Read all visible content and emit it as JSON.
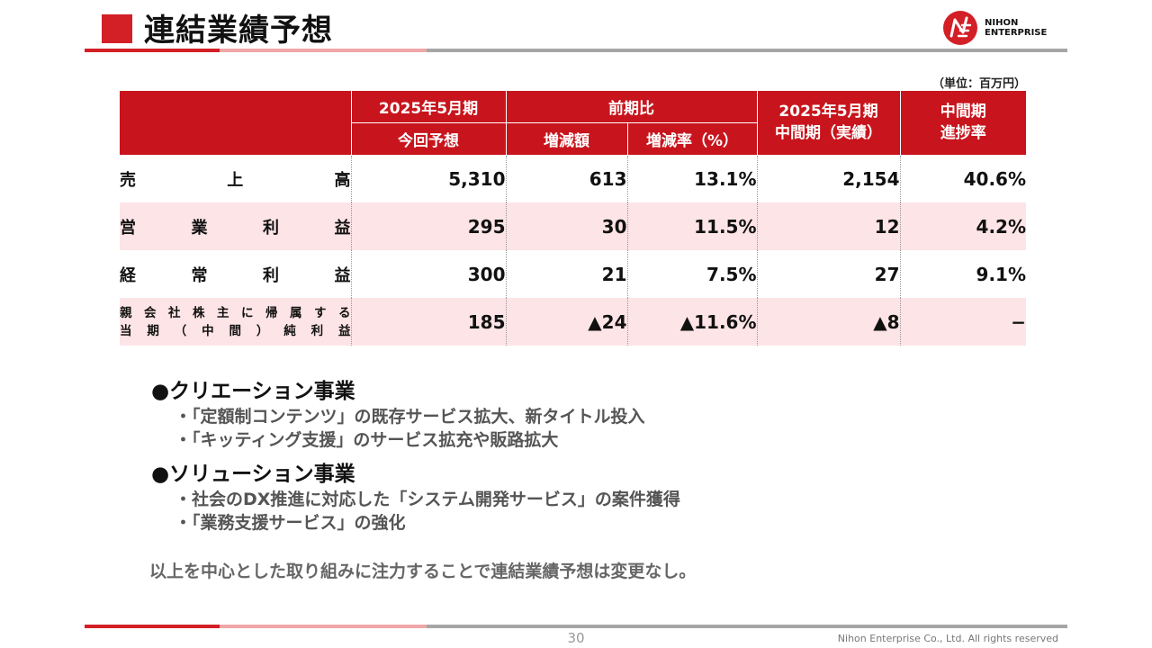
{
  "title": "連結業績予想",
  "logo": {
    "line1": "NIHON",
    "line2": "ENTERPRISE",
    "mark": "NE"
  },
  "unit": "（単位：百万円）",
  "table": {
    "header": {
      "col_fy": "2025年5月期",
      "col_fy_sub": "今回予想",
      "col_yoy": "前期比",
      "col_yoy_amount": "増減額",
      "col_yoy_rate": "増減率（%）",
      "col_interim_line1": "2025年5月期",
      "col_interim_line2": "中間期（実績）",
      "col_progress_line1": "中間期",
      "col_progress_line2": "進捗率"
    },
    "rows": [
      {
        "label_chars": [
          "売",
          "上",
          "高"
        ],
        "forecast": "5,310",
        "change": "613",
        "rate": "13.1%",
        "interim": "2,154",
        "progress": "40.6%"
      },
      {
        "label_chars": [
          "営",
          "業",
          "利",
          "益"
        ],
        "forecast": "295",
        "change": "30",
        "rate": "11.5%",
        "interim": "12",
        "progress": "4.2%"
      },
      {
        "label_chars": [
          "経",
          "常",
          "利",
          "益"
        ],
        "forecast": "300",
        "change": "21",
        "rate": "7.5%",
        "interim": "27",
        "progress": "9.1%"
      },
      {
        "label_line1": [
          "親",
          "会",
          "社",
          "株",
          "主",
          "に",
          "帰",
          "属",
          "す",
          "る"
        ],
        "label_line2": [
          "当",
          "期",
          "（",
          "中",
          "間",
          "）",
          "純",
          "利",
          "益"
        ],
        "forecast": "185",
        "change": "▲24",
        "rate": "▲11.6%",
        "interim": "▲8",
        "progress": "−"
      }
    ]
  },
  "sections": [
    {
      "title": "●クリエーション事業",
      "items": [
        "・「定額制コンテンツ」の既存サービス拡大、新タイトル投入",
        "・「キッティング支援」のサービス拡充や販路拡大"
      ]
    },
    {
      "title": "●ソリューション事業",
      "items": [
        "・社会のDX推進に対応した「システム開発サービス」の案件獲得",
        "・「業務支援サービス」の強化"
      ]
    }
  ],
  "conclusion": "以上を中心とした取り組みに注力することで連結業績予想は変更なし。",
  "footer": {
    "page": "30",
    "copyright": "Nihon Enterprise Co., Ltd. All rights reserved"
  },
  "colors": {
    "brand_red": "#d31f26",
    "header_red": "#c8151d",
    "row_pink": "#fde4e6",
    "bar_pink": "#f0a6a9",
    "bar_gray": "#a6a6a6"
  }
}
